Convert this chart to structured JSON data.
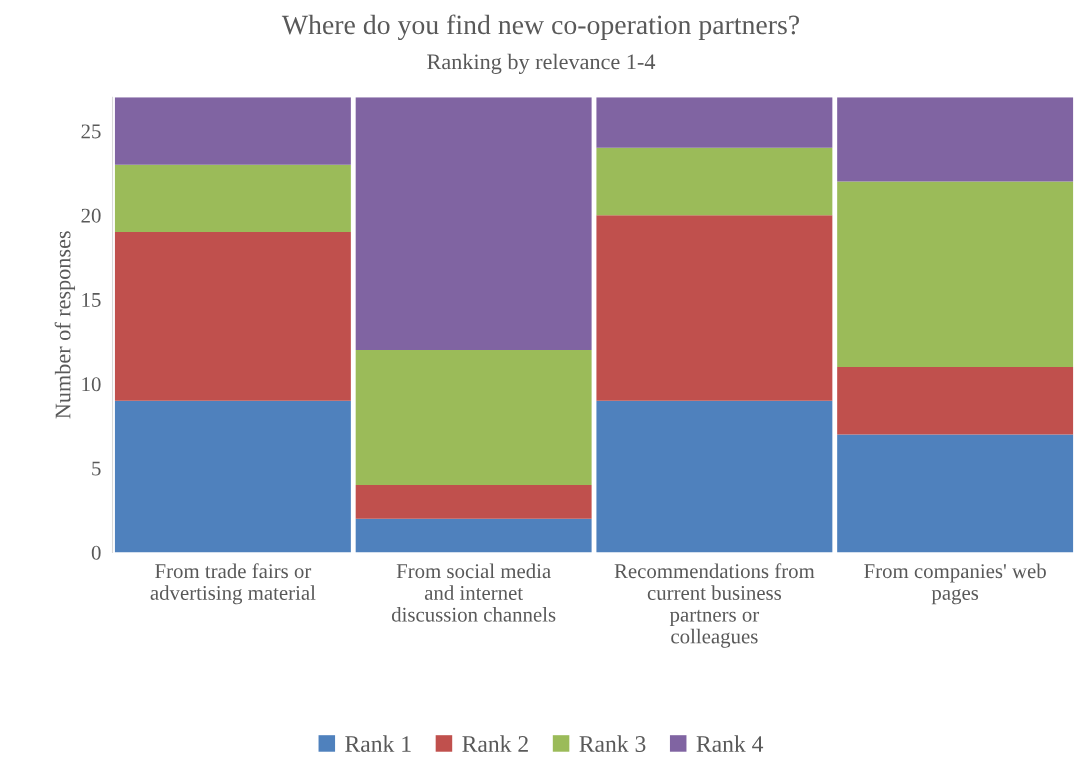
{
  "chart_data": {
    "type": "bar",
    "title": "Where do you find new co-operation partners?",
    "subtitle": "Ranking by relevance 1-4",
    "ylabel": "Number of responses",
    "stacked": true,
    "categories": [
      "From trade fairs or advertising material",
      "From social media and internet discussion channels",
      "Recommendations from current business partners or colleagues",
      "From companies' web pages"
    ],
    "series": [
      {
        "name": "Rank 1",
        "color": "#4f81bd",
        "values": [
          9,
          2,
          9,
          7
        ]
      },
      {
        "name": "Rank 2",
        "color": "#c0504d",
        "values": [
          10,
          2,
          11,
          4
        ]
      },
      {
        "name": "Rank 3",
        "color": "#9bbb59",
        "values": [
          4,
          8,
          4,
          11
        ]
      },
      {
        "name": "Rank 4",
        "color": "#8064a2",
        "values": [
          4,
          15,
          3,
          5
        ]
      }
    ],
    "ylim": [
      0,
      27
    ],
    "yticks": [
      0,
      5,
      10,
      15,
      20,
      25
    ],
    "grid": false,
    "legend": "bottom"
  }
}
